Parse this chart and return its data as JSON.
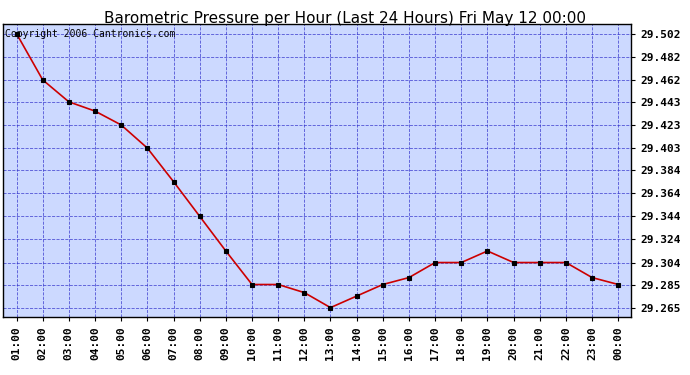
{
  "title": "Barometric Pressure per Hour (Last 24 Hours) Fri May 12 00:00",
  "copyright": "Copyright 2006 Cantronics.com",
  "x_labels": [
    "01:00",
    "02:00",
    "03:00",
    "04:00",
    "05:00",
    "06:00",
    "07:00",
    "08:00",
    "09:00",
    "10:00",
    "11:00",
    "12:00",
    "13:00",
    "14:00",
    "15:00",
    "16:00",
    "17:00",
    "18:00",
    "19:00",
    "20:00",
    "21:00",
    "22:00",
    "23:00",
    "00:00"
  ],
  "y_values": [
    29.502,
    29.462,
    29.443,
    29.435,
    29.423,
    29.403,
    29.374,
    29.344,
    29.314,
    29.285,
    29.285,
    29.278,
    29.265,
    29.275,
    29.285,
    29.291,
    29.304,
    29.304,
    29.314,
    29.304,
    29.304,
    29.304,
    29.291,
    29.285
  ],
  "ylim_min": 29.257,
  "ylim_max": 29.51,
  "yticks": [
    29.265,
    29.285,
    29.304,
    29.324,
    29.344,
    29.364,
    29.384,
    29.403,
    29.423,
    29.443,
    29.462,
    29.482,
    29.502
  ],
  "line_color": "#cc0000",
  "marker_color": "#000000",
  "bg_color": "#ccd9ff",
  "grid_color": "#3333cc",
  "title_fontsize": 11,
  "copyright_fontsize": 7,
  "tick_fontsize": 8,
  "border_color": "#000000"
}
